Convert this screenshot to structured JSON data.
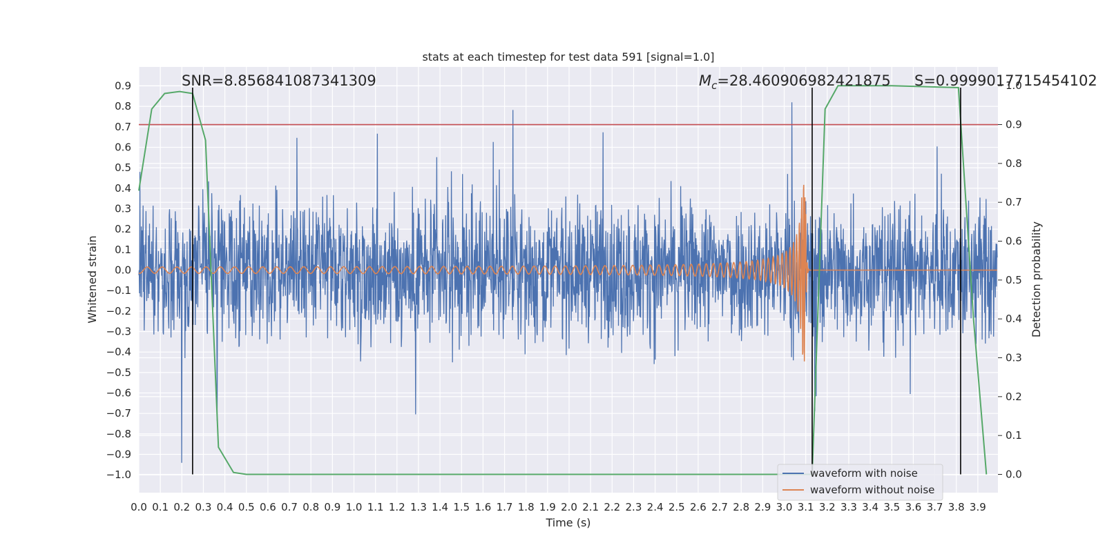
{
  "chart_data": {
    "type": "line",
    "title": "stats at each timestep for test data 591 [signal=1.0]",
    "xlabel": "Time (s)",
    "ylabel": "Whitened strain",
    "ylabel_right": "Detection probability",
    "xlim": [
      0.0,
      4.0
    ],
    "ylim": [
      -1.09,
      0.99
    ],
    "ylim_right": [
      -0.05,
      1.05
    ],
    "x_ticks": [
      "0.0",
      "0.1",
      "0.2",
      "0.3",
      "0.4",
      "0.5",
      "0.6",
      "0.7",
      "0.8",
      "0.9",
      "1.0",
      "1.1",
      "1.2",
      "1.3",
      "1.4",
      "1.5",
      "1.6",
      "1.7",
      "1.8",
      "1.9",
      "2.0",
      "2.1",
      "2.2",
      "2.3",
      "2.4",
      "2.5",
      "2.6",
      "2.7",
      "2.8",
      "2.9",
      "3.0",
      "3.1",
      "3.2",
      "3.3",
      "3.4",
      "3.5",
      "3.6",
      "3.7",
      "3.8",
      "3.9"
    ],
    "y_ticks": [
      "0.9",
      "0.8",
      "0.7",
      "0.6",
      "0.5",
      "0.4",
      "0.3",
      "0.2",
      "0.1",
      "0.0",
      "−0.1",
      "−0.2",
      "−0.3",
      "−0.4",
      "−0.5",
      "−0.6",
      "−0.7",
      "−0.8",
      "−0.9",
      "−1.0"
    ],
    "y_ticks_right": [
      "1.0",
      "0.9",
      "0.8",
      "0.7",
      "0.6",
      "0.5",
      "0.4",
      "0.3",
      "0.2",
      "0.1",
      "0.0"
    ],
    "annotations": {
      "snr": "SNR=8.856841087341309",
      "mc_symbol": "M",
      "mc_sub": "c",
      "mc_value": "=28.460906982421875",
      "s": "S=0.9999017715454102"
    },
    "series": [
      {
        "name": "waveform with noise",
        "color": "#4c72b0",
        "kind": "noise",
        "amplitude_typical": 0.45,
        "amplitude_peak": 0.9
      },
      {
        "name": "waveform without noise",
        "color": "#dd8452",
        "kind": "chirp",
        "merger_time": 3.1,
        "amplitude_peak": 0.47
      }
    ],
    "detection_probability": {
      "color": "#55a868",
      "x": [
        0.0,
        0.06,
        0.12,
        0.19,
        0.25,
        0.31,
        0.37,
        0.44,
        0.5,
        1.0,
        2.0,
        3.0,
        3.13,
        3.19,
        3.25,
        3.5,
        3.81,
        3.88,
        3.94
      ],
      "y": [
        0.73,
        0.94,
        0.98,
        0.985,
        0.98,
        0.86,
        0.07,
        0.005,
        0.0,
        0.0,
        0.0,
        0.0,
        0.0,
        0.94,
        1.0,
        1.0,
        0.995,
        0.4,
        0.0
      ]
    },
    "threshold": {
      "value": 0.9,
      "axis": "right",
      "color": "#c44e52"
    },
    "vertical_markers": [
      0.25,
      3.13,
      3.82
    ],
    "legend": {
      "position": "lower-right"
    }
  }
}
